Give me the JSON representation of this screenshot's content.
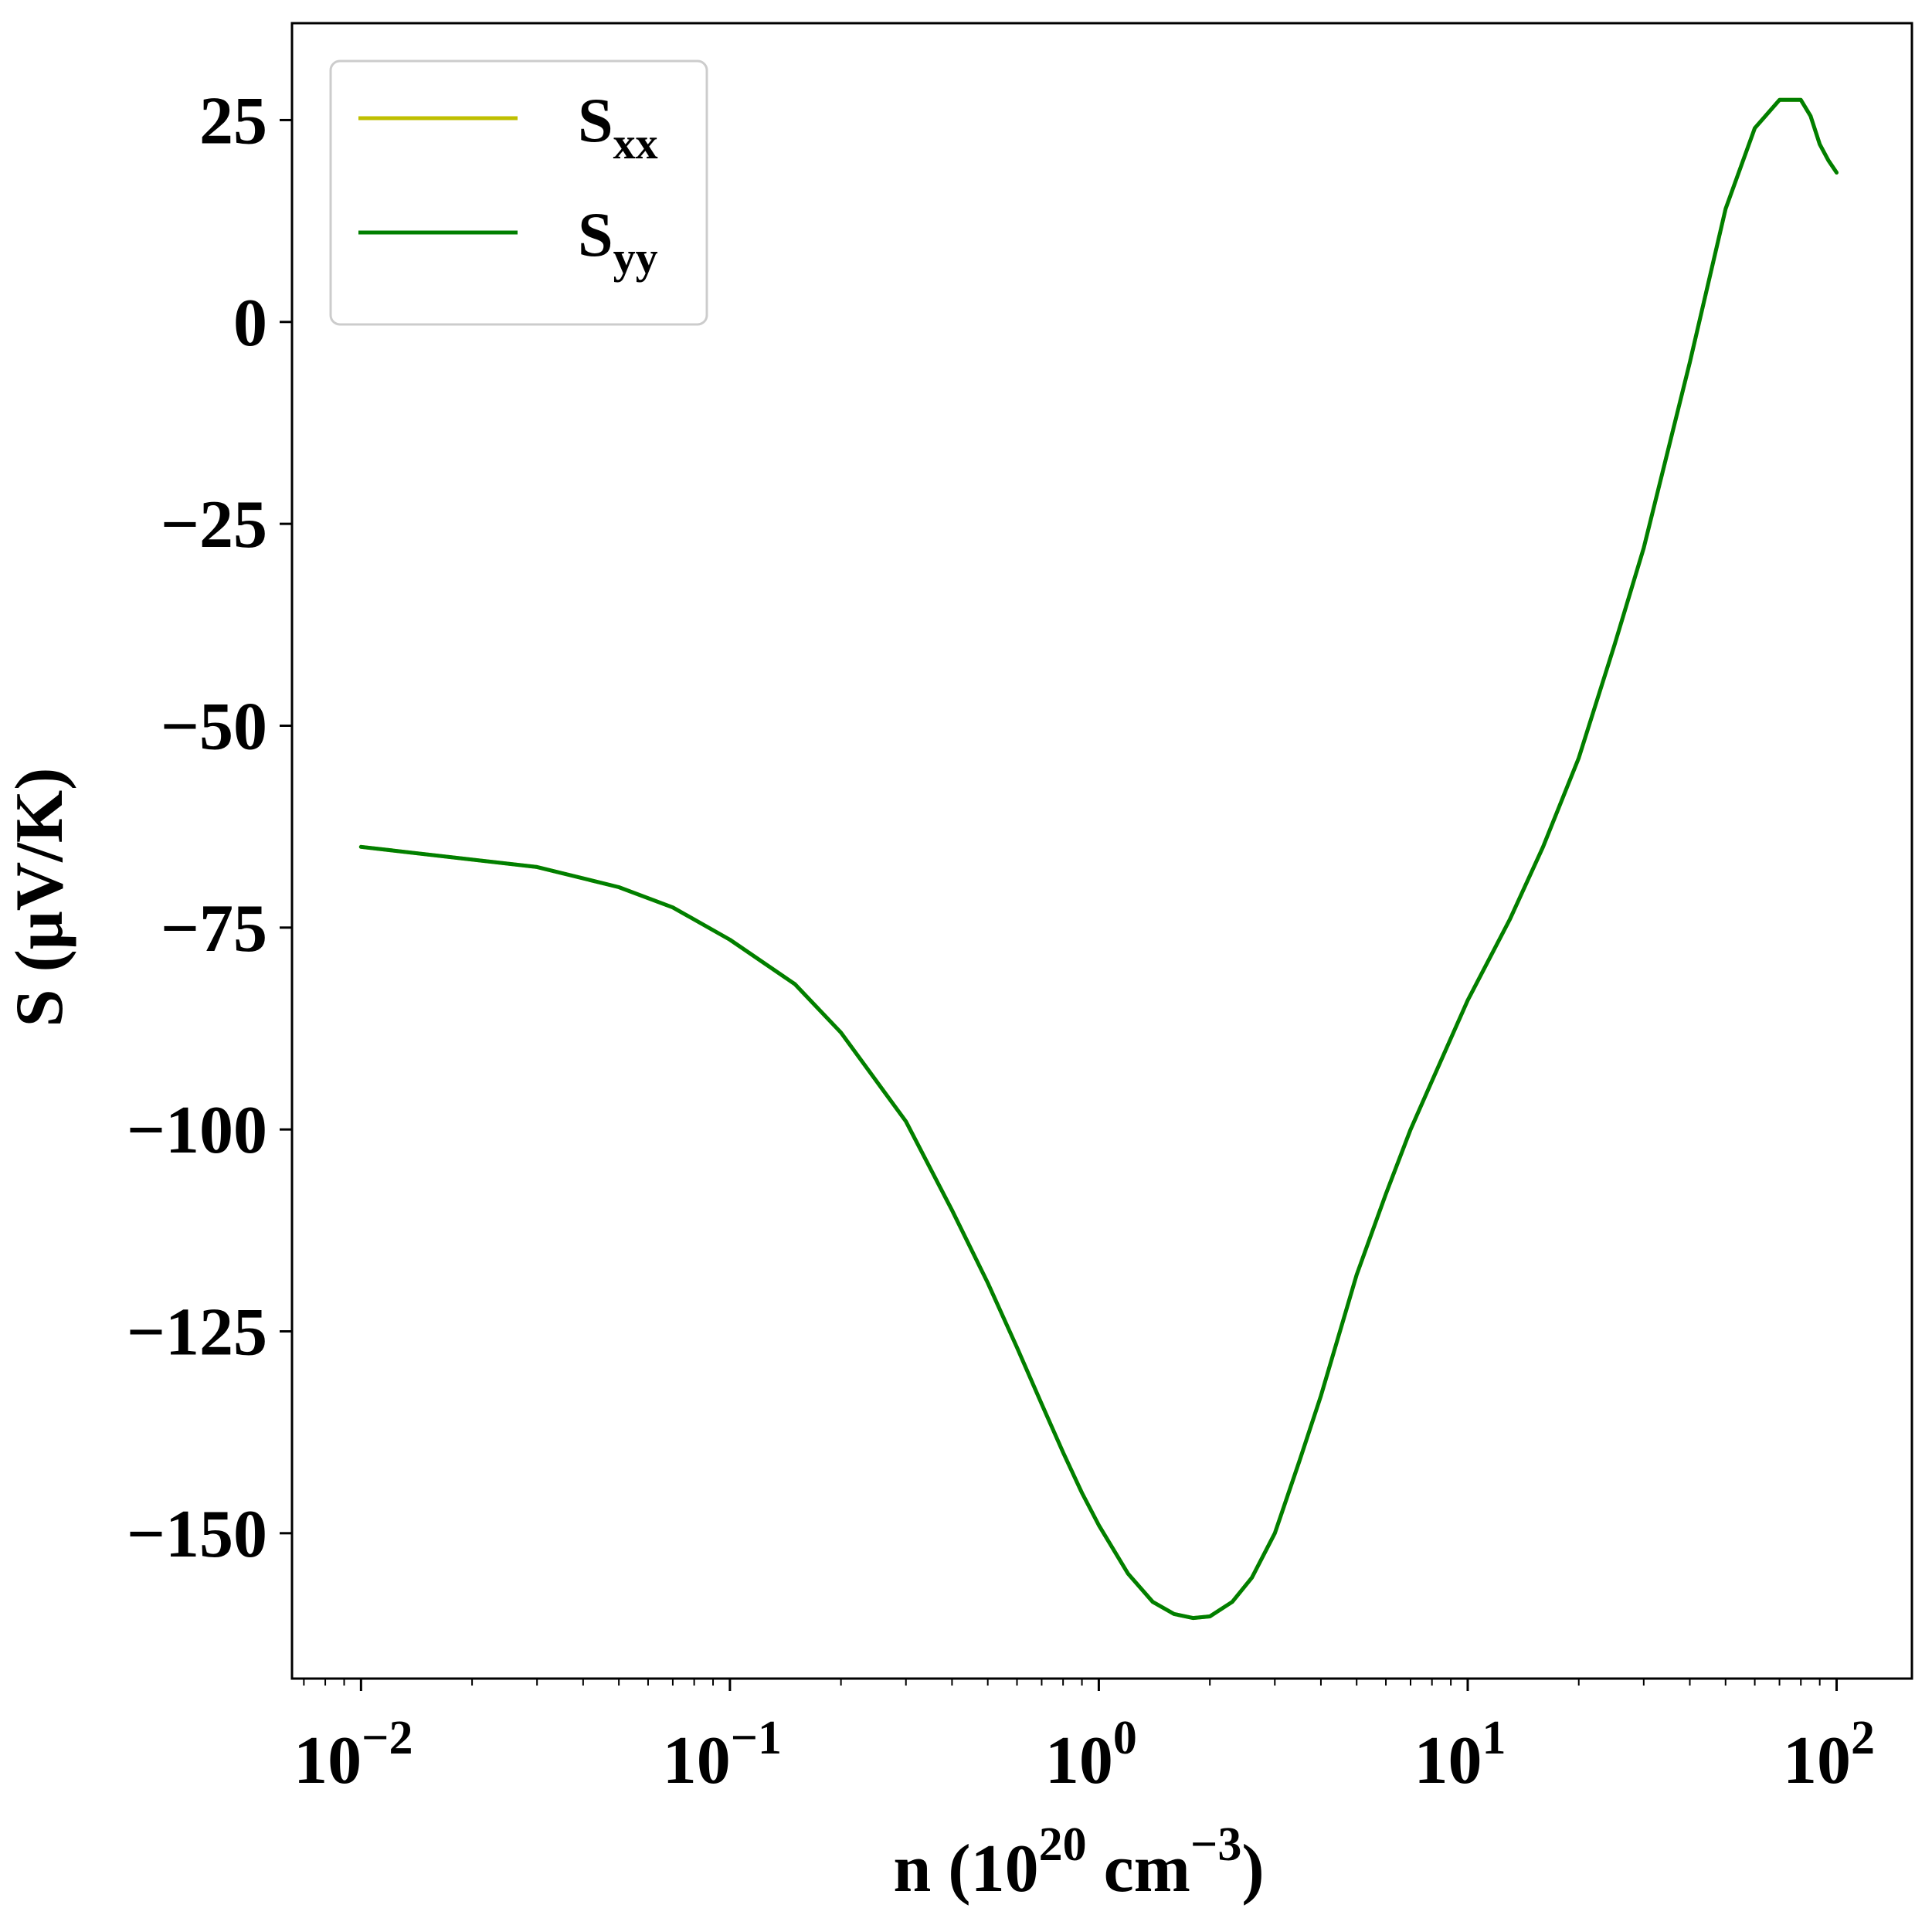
{
  "chart_data": {
    "type": "line",
    "xscale": "log",
    "xlim": [
      0.0065,
      160
    ],
    "ylim": [
      -168,
      37
    ],
    "xlabel": {
      "base": "n (10",
      "sup1": "20",
      "mid": " cm",
      "sup2": "−3",
      "end": ")"
    },
    "ylabel": "S (μV/K)",
    "x_ticks": [
      {
        "value": 0.01,
        "base": "10",
        "exp": "−2"
      },
      {
        "value": 0.1,
        "base": "10",
        "exp": "−1"
      },
      {
        "value": 1,
        "base": "10",
        "exp": "0"
      },
      {
        "value": 10,
        "base": "10",
        "exp": "1"
      },
      {
        "value": 100,
        "base": "10",
        "exp": "2"
      }
    ],
    "y_ticks": [
      {
        "value": 25,
        "label": "25"
      },
      {
        "value": 0,
        "label": "0"
      },
      {
        "value": -25,
        "label": "−25"
      },
      {
        "value": -50,
        "label": "−50"
      },
      {
        "value": -75,
        "label": "−75"
      },
      {
        "value": -100,
        "label": "−100"
      },
      {
        "value": -125,
        "label": "−125"
      },
      {
        "value": -150,
        "label": "−150"
      }
    ],
    "legend": {
      "placement": "top-left",
      "items": [
        {
          "base": "S",
          "sub": "xx",
          "color": "#bfbf00"
        },
        {
          "base": "S",
          "sub": "yy",
          "color": "#007f00"
        }
      ]
    },
    "series": [
      {
        "color": "#bfbf00",
        "x": [
          0.01,
          0.03,
          0.05,
          0.07,
          0.1,
          0.15,
          0.2,
          0.3,
          0.4,
          0.5,
          0.6,
          0.7,
          0.8,
          0.9,
          1.0,
          1.2,
          1.4,
          1.6,
          1.8,
          2.0,
          2.3,
          2.6,
          3.0,
          3.5,
          4.0,
          5.0,
          6.0,
          7.0,
          8.0,
          10.0,
          13.0,
          16.0,
          20.0,
          25.0,
          30.0,
          40.0,
          50.0,
          60.0,
          70.0,
          80.0,
          85.0,
          90.0,
          95.0,
          100.0
        ],
        "y": [
          -65,
          -67.5,
          -70,
          -72.5,
          -76.5,
          -82,
          -88,
          -99,
          -110,
          -119,
          -127,
          -134,
          -140,
          -145,
          -149,
          -155,
          -158.5,
          -160,
          -160.5,
          -160.3,
          -158.5,
          -155.5,
          -150,
          -141,
          -133,
          -118,
          -108,
          -100,
          -94,
          -84,
          -74,
          -65,
          -54,
          -40,
          -28,
          -5,
          14,
          24,
          27.5,
          27.5,
          25.5,
          22,
          20,
          18.5
        ]
      },
      {
        "color": "#007f00",
        "x": [
          0.01,
          0.03,
          0.05,
          0.07,
          0.1,
          0.15,
          0.2,
          0.3,
          0.4,
          0.5,
          0.6,
          0.7,
          0.8,
          0.9,
          1.0,
          1.2,
          1.4,
          1.6,
          1.8,
          2.0,
          2.3,
          2.6,
          3.0,
          3.5,
          4.0,
          5.0,
          6.0,
          7.0,
          8.0,
          10.0,
          13.0,
          16.0,
          20.0,
          25.0,
          30.0,
          40.0,
          50.0,
          60.0,
          70.0,
          80.0,
          85.0,
          90.0,
          95.0,
          100.0
        ],
        "y": [
          -65,
          -67.5,
          -70,
          -72.5,
          -76.5,
          -82,
          -88,
          -99,
          -110,
          -119,
          -127,
          -134,
          -140,
          -145,
          -149,
          -155,
          -158.5,
          -160,
          -160.5,
          -160.3,
          -158.5,
          -155.5,
          -150,
          -141,
          -133,
          -118,
          -108,
          -100,
          -94,
          -84,
          -74,
          -65,
          -54,
          -40,
          -28,
          -5,
          14,
          24,
          27.5,
          27.5,
          25.5,
          22,
          20,
          18.5
        ]
      }
    ]
  }
}
